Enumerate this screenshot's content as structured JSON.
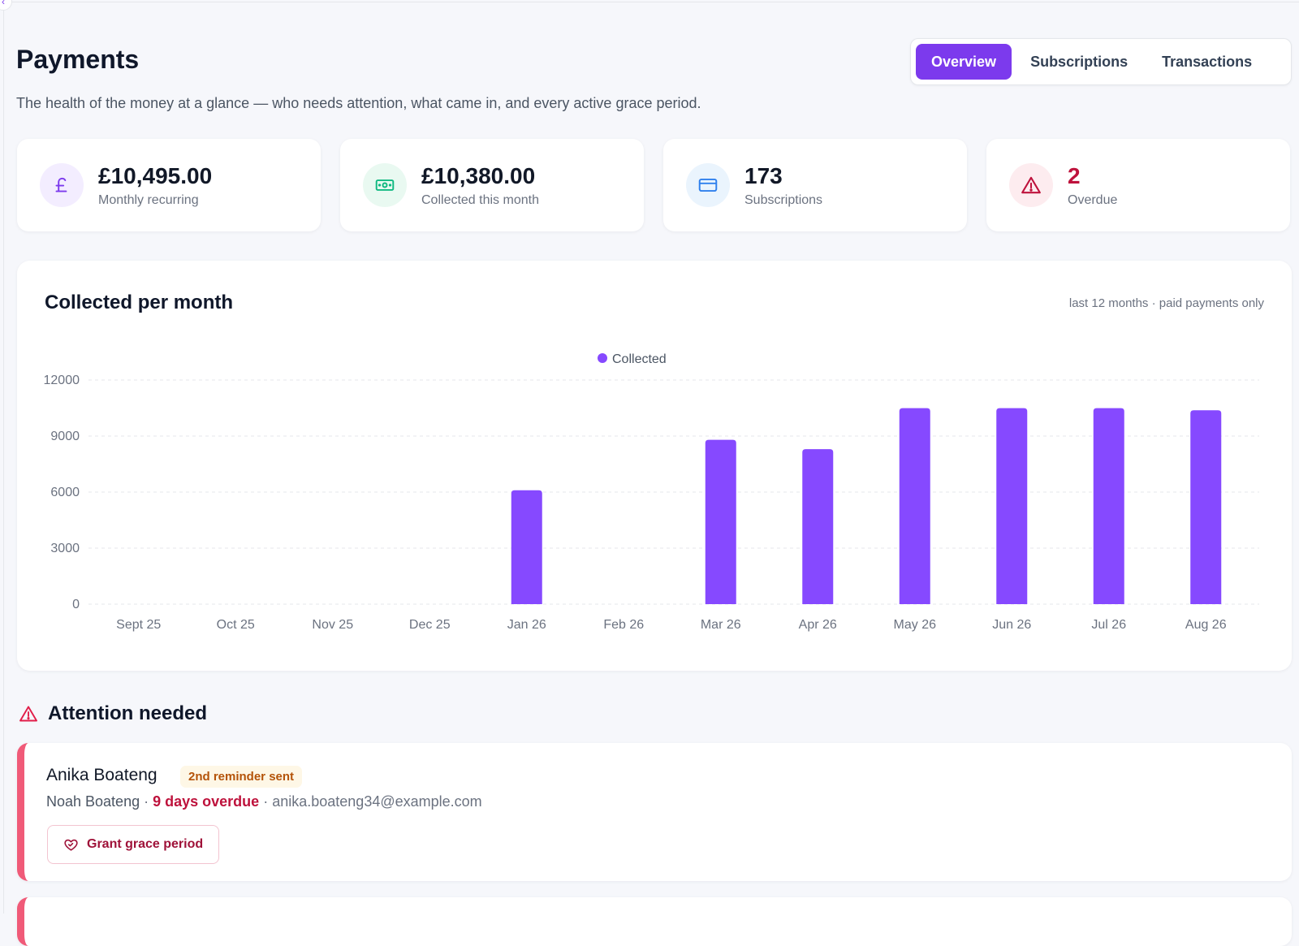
{
  "header": {
    "title": "Payments",
    "subtitle": "The health of the money at a glance — who needs attention, what came in, and every active grace period."
  },
  "tabs": [
    {
      "label": "Overview",
      "active": true
    },
    {
      "label": "Subscriptions",
      "active": false
    },
    {
      "label": "Transactions",
      "active": false
    }
  ],
  "stats": [
    {
      "value": "£10,495.00",
      "label": "Monthly recurring",
      "icon": "pound-icon",
      "icon_bg": "#f3edff",
      "icon_color": "#7c3aed",
      "value_color": "#111827"
    },
    {
      "value": "£10,380.00",
      "label": "Collected this month",
      "icon": "cash-icon",
      "icon_bg": "#e9f9f1",
      "icon_color": "#10b981",
      "value_color": "#111827"
    },
    {
      "value": "173",
      "label": "Subscriptions",
      "icon": "card-icon",
      "icon_bg": "#eaf4fd",
      "icon_color": "#2f80ed",
      "value_color": "#111827"
    },
    {
      "value": "2",
      "label": "Overdue",
      "icon": "warning-icon",
      "icon_bg": "#fdecef",
      "icon_color": "#be123c",
      "value_color": "#be123c"
    }
  ],
  "chart": {
    "title": "Collected per month",
    "note": "last 12 months · paid payments only"
  },
  "chart_data": {
    "type": "bar",
    "categories": [
      "Sept 25",
      "Oct 25",
      "Nov 25",
      "Dec 25",
      "Jan 26",
      "Feb 26",
      "Mar 26",
      "Apr 26",
      "May 26",
      "Jun 26",
      "Jul 26",
      "Aug 26"
    ],
    "series": [
      {
        "name": "Collected",
        "color": "#8649ff",
        "values": [
          0,
          0,
          0,
          0,
          6100,
          0,
          8800,
          8300,
          10495,
          10495,
          10495,
          10380
        ]
      }
    ],
    "yticks": [
      "0",
      "3000",
      "6000",
      "9000",
      "12000"
    ],
    "ylim": [
      0,
      12000
    ],
    "grid": true,
    "legend": "top-center"
  },
  "attention": {
    "title": "Attention needed",
    "items": [
      {
        "name": "Anika Boateng",
        "badge": "2nd reminder sent",
        "guardian": "Noah Boateng",
        "separator": "·",
        "overdue": "9 days overdue",
        "email": "anika.boateng34@example.com",
        "action": "Grant grace period"
      }
    ]
  }
}
